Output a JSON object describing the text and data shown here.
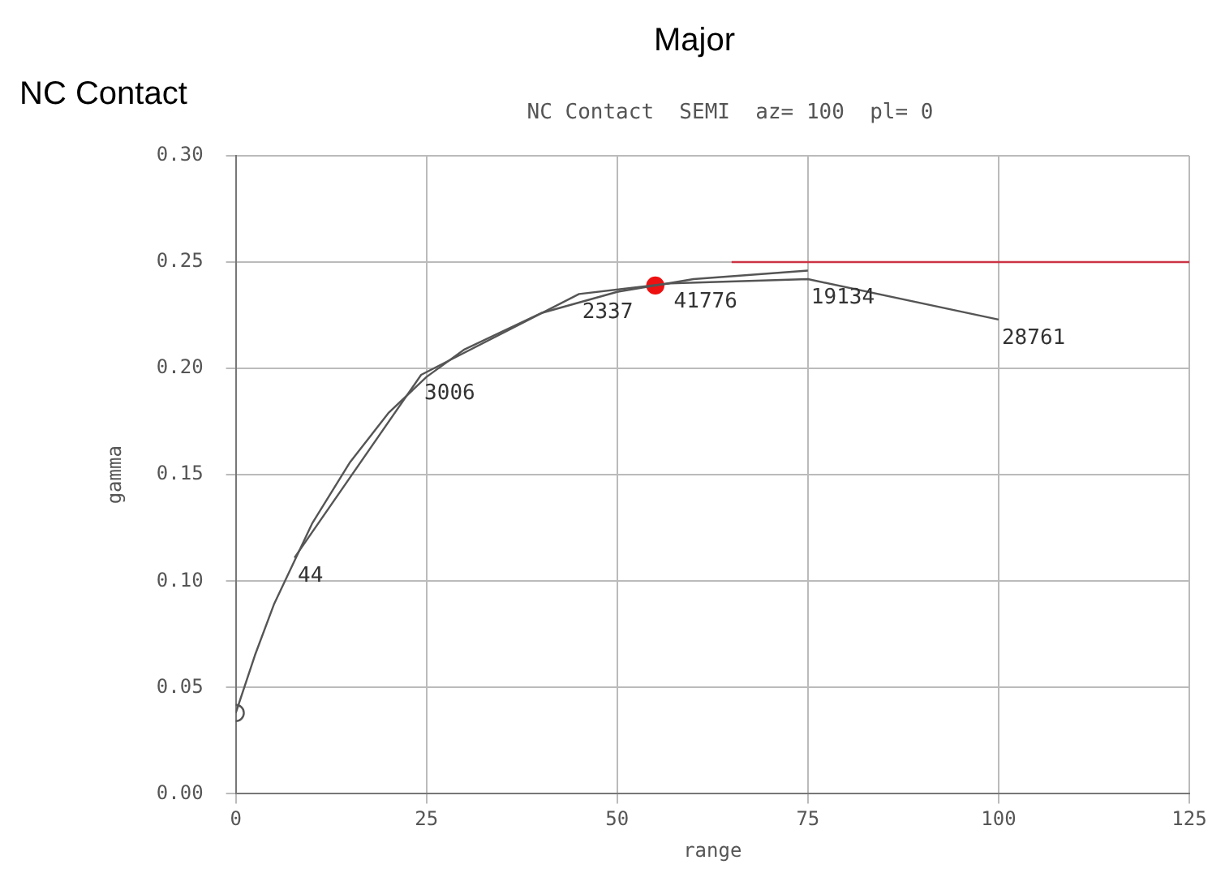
{
  "chart_data": {
    "type": "line",
    "title": "Major",
    "subtitle": "NC Contact  SEMI  az= 100  pl= 0",
    "xlabel": "range",
    "ylabel": "gamma",
    "annotations": [
      "NC Contact",
      {
        "text": "44",
        "x": 7.7,
        "y": 0.111
      },
      {
        "text": "3006",
        "x": 24.3,
        "y": 0.197
      },
      {
        "text": "2337",
        "x": 45,
        "y": 0.235
      },
      {
        "text": "41776",
        "x": 57,
        "y": 0.24
      },
      {
        "text": "19134",
        "x": 75,
        "y": 0.242
      },
      {
        "text": "28761",
        "x": 100,
        "y": 0.223
      }
    ],
    "xlim": [
      0,
      125
    ],
    "xticks": [
      0,
      25,
      50,
      75,
      100,
      125
    ],
    "ylim": [
      0,
      0.3
    ],
    "yticks": [
      {
        "value": 0,
        "label": "0.00"
      },
      {
        "value": 0.05,
        "label": "0.05"
      },
      {
        "value": 0.1,
        "label": "0.10"
      },
      {
        "value": 0.15,
        "label": "0.15"
      },
      {
        "value": 0.2,
        "label": "0.20"
      },
      {
        "value": 0.25,
        "label": "0.25"
      },
      {
        "value": 0.3,
        "label": "0.30"
      }
    ],
    "grid": true,
    "legend": false,
    "series": [
      {
        "color": "#555555",
        "marker": "none",
        "x": [
          0,
          2.5,
          5,
          10,
          15,
          20,
          25,
          30,
          40,
          50,
          60,
          75
        ],
        "values": [
          0.038,
          0.065,
          0.089,
          0.127,
          0.156,
          0.179,
          0.196,
          0.209,
          0.226,
          0.236,
          0.242,
          0.246
        ]
      },
      {
        "color": "#cc3344",
        "marker": "none",
        "x": [
          65,
          125
        ],
        "values": [
          0.25,
          0.25
        ]
      },
      {
        "color": "#555555",
        "marker": "none",
        "x": [
          7.7,
          24.3,
          45,
          57,
          75,
          100
        ],
        "values": [
          0.111,
          0.197,
          0.235,
          0.24,
          0.242,
          0.223
        ]
      },
      {
        "type": "scatter",
        "color": "#555555",
        "marker": "circle",
        "x": [
          0
        ],
        "values": [
          0.038
        ]
      },
      {
        "type": "scatter",
        "color": "#ee1111",
        "marker": "circle",
        "x": [
          55
        ],
        "values": [
          0.239
        ]
      }
    ]
  }
}
